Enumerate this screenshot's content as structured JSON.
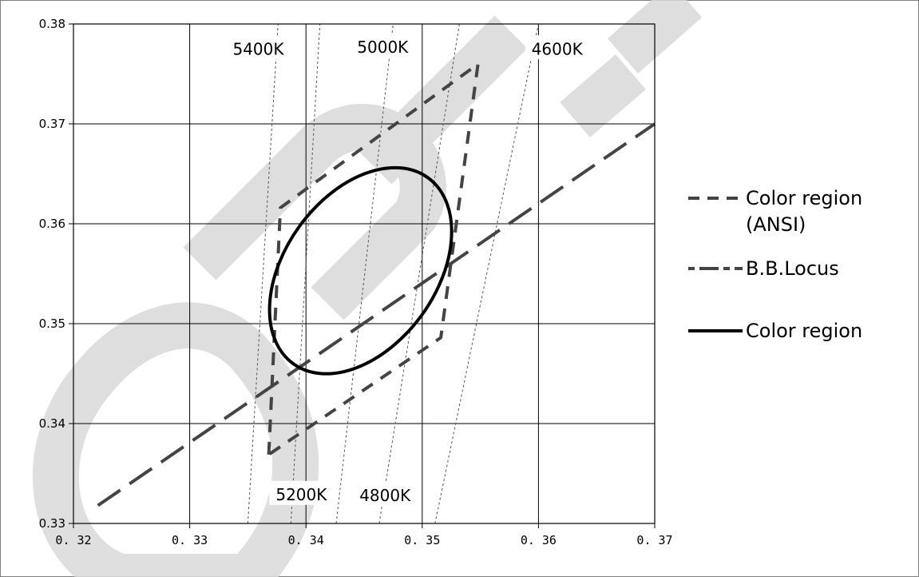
{
  "chart_data": {
    "type": "line",
    "title": "",
    "xlabel": "",
    "ylabel": "",
    "xlim": [
      0.32,
      0.37
    ],
    "ylim": [
      0.33,
      0.38
    ],
    "x_ticks": [
      0.32,
      0.33,
      0.34,
      0.35,
      0.36,
      0.37
    ],
    "x_tick_labels": [
      "0. 32",
      "0. 33",
      "0. 34",
      "0. 35",
      "0. 36",
      "0. 37"
    ],
    "y_ticks": [
      0.33,
      0.34,
      0.35,
      0.36,
      0.37,
      0.38
    ],
    "y_tick_labels": [
      "0.33",
      "0.34",
      "0.35",
      "0.36",
      "0.37",
      "0.38"
    ],
    "grid": true,
    "legend_position": "right",
    "series": [
      {
        "name": "Color region (ANSI)",
        "style": "dashed",
        "color": "#444444",
        "points": [
          [
            0.3368,
            0.3369
          ],
          [
            0.3378,
            0.3616
          ],
          [
            0.3548,
            0.376
          ],
          [
            0.3516,
            0.3486
          ],
          [
            0.3368,
            0.3369
          ]
        ]
      },
      {
        "name": "B.B.Locus",
        "style": "long-dash",
        "color": "#444444",
        "points": [
          [
            0.3221,
            0.3318
          ],
          [
            0.37,
            0.37
          ]
        ]
      },
      {
        "name": "Color region",
        "style": "solid",
        "color": "#000000",
        "ellipse": {
          "center": [
            0.3447,
            0.3553
          ],
          "rx": 0.0065,
          "ry": 0.0115,
          "tilt_deg": 36
        }
      }
    ],
    "cct_lines": [
      {
        "label": "5400K",
        "points": [
          [
            0.335,
            0.33
          ],
          [
            0.3376,
            0.38
          ]
        ]
      },
      {
        "label": "5200K",
        "points": [
          [
            0.3387,
            0.33
          ],
          [
            0.3412,
            0.38
          ]
        ]
      },
      {
        "label": "5000K",
        "points": [
          [
            0.3426,
            0.33
          ],
          [
            0.3475,
            0.38
          ]
        ]
      },
      {
        "label": "4800K",
        "points": [
          [
            0.3463,
            0.33
          ],
          [
            0.3532,
            0.38
          ]
        ]
      },
      {
        "label": "4600K",
        "points": [
          [
            0.3511,
            0.33
          ],
          [
            0.36,
            0.38
          ]
        ]
      }
    ],
    "annotations": [
      {
        "text": "5400K",
        "at": [
          0.3359,
          0.3775
        ]
      },
      {
        "text": "5000K",
        "at": [
          0.3466,
          0.3777
        ]
      },
      {
        "text": "4600K",
        "at": [
          0.3616,
          0.3775
        ]
      },
      {
        "text": "5200K",
        "at": [
          0.3396,
          0.3329
        ]
      },
      {
        "text": "4800K",
        "at": [
          0.3468,
          0.3328
        ]
      }
    ]
  },
  "legend": {
    "items": [
      {
        "label": "Color region (ANSI)",
        "style": "dashed"
      },
      {
        "label": "B.B.Locus",
        "style": "long-dash"
      },
      {
        "label": "Color region",
        "style": "solid"
      }
    ]
  },
  "colors": {
    "grid": "#000000",
    "ansi": "#444444",
    "locus": "#444444",
    "region": "#000000",
    "cct": "#555555",
    "watermark": "#d9d9d9"
  }
}
